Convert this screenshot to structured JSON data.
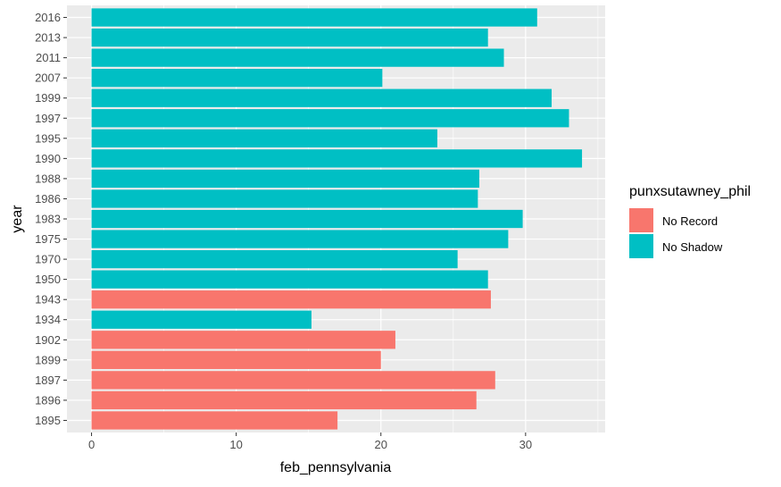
{
  "chart_data": {
    "type": "bar",
    "orientation": "horizontal",
    "xlabel": "feb_pennsylvania",
    "ylabel": "year",
    "xlim": [
      -1.7,
      35.5
    ],
    "x_ticks": [
      0,
      10,
      20,
      30
    ],
    "grid": true,
    "legend_position": "right",
    "legend": {
      "title": "punxsutawney_phil",
      "entries": [
        {
          "label": "No Record",
          "color": "#F8766D"
        },
        {
          "label": "No Shadow",
          "color": "#00BFC4"
        }
      ]
    },
    "categories": [
      "1895",
      "1896",
      "1897",
      "1899",
      "1902",
      "1934",
      "1943",
      "1950",
      "1970",
      "1975",
      "1983",
      "1986",
      "1988",
      "1990",
      "1995",
      "1997",
      "1999",
      "2007",
      "2011",
      "2013",
      "2016"
    ],
    "values": [
      17.0,
      26.6,
      27.9,
      20.0,
      21.0,
      15.2,
      27.6,
      27.4,
      25.3,
      28.8,
      29.8,
      26.7,
      26.8,
      33.9,
      23.9,
      33.0,
      31.8,
      20.1,
      28.5,
      27.4,
      30.8
    ],
    "groups": [
      "No Record",
      "No Record",
      "No Record",
      "No Record",
      "No Record",
      "No Shadow",
      "No Record",
      "No Shadow",
      "No Shadow",
      "No Shadow",
      "No Shadow",
      "No Shadow",
      "No Shadow",
      "No Shadow",
      "No Shadow",
      "No Shadow",
      "No Shadow",
      "No Shadow",
      "No Shadow",
      "No Shadow",
      "No Shadow"
    ]
  }
}
